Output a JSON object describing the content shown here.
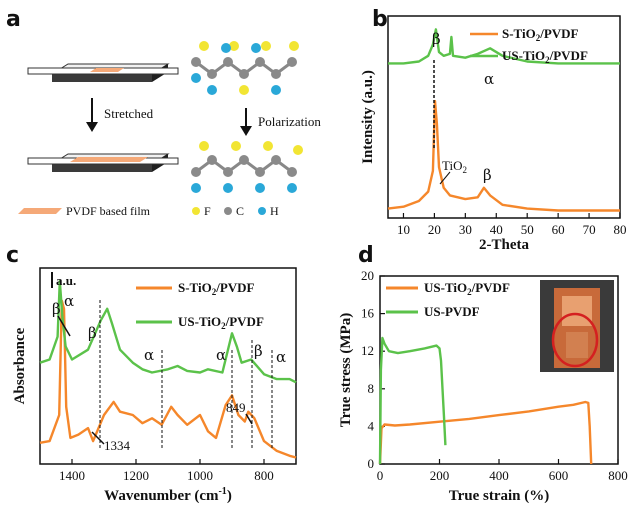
{
  "colors": {
    "orange": "#f5872b",
    "green": "#5bc24a",
    "fluor_yellow": "#f2e533",
    "carbon_gray": "#8a8a8a",
    "hydrogen_blue": "#2aa8d8"
  },
  "panel_a": {
    "letter": "a",
    "stretched_label": "Stretched",
    "polarization_label": "Polarization",
    "film_label": "PVDF based film",
    "atom_f": "F",
    "atom_c": "C",
    "atom_h": "H"
  },
  "chart_data": [
    {
      "panel": "b",
      "type": "line",
      "ylabel": "Intensity (a.u.)",
      "xlabel": "2-Theta",
      "xlim": [
        5,
        80
      ],
      "xticks": [
        "10",
        "20",
        "30",
        "40",
        "50",
        "60",
        "70",
        "80"
      ],
      "series": [
        {
          "name": "S-TiO2/PVDF",
          "color": "#f5872b",
          "x": [
            5,
            10,
            15,
            18,
            19.5,
            20.2,
            20.8,
            21.5,
            23,
            25,
            30,
            34,
            36,
            38,
            42,
            50,
            60,
            70,
            80
          ],
          "y": [
            0.05,
            0.06,
            0.09,
            0.14,
            0.25,
            0.62,
            0.5,
            0.27,
            0.16,
            0.12,
            0.1,
            0.11,
            0.16,
            0.12,
            0.07,
            0.05,
            0.04,
            0.04,
            0.04
          ]
        },
        {
          "name": "US-TiO2/PVDF",
          "color": "#5bc24a",
          "x": [
            5,
            10,
            15,
            18,
            19.5,
            20.5,
            21.5,
            23,
            25,
            25.5,
            26,
            30,
            34,
            38,
            42,
            50,
            60,
            70,
            80
          ],
          "y": [
            0.82,
            0.82,
            0.83,
            0.86,
            0.92,
            1.0,
            0.88,
            0.86,
            0.87,
            0.96,
            0.86,
            0.85,
            0.87,
            0.9,
            0.86,
            0.83,
            0.82,
            0.82,
            0.82
          ]
        }
      ],
      "annotations": [
        "β",
        "α",
        "TiO",
        "2",
        "β"
      ],
      "legend_position": "top-right"
    },
    {
      "panel": "c",
      "type": "line",
      "ylabel": "Absorbance",
      "xlabel": "Wavenumber (cm",
      "xlabel_sup": "-1",
      "xlabel_end": ")",
      "xlim": [
        1500,
        700
      ],
      "xticks": [
        "1400",
        "1200",
        "1000",
        "800"
      ],
      "scale_label": "a.u.",
      "series": [
        {
          "name": "S-TiO2/PVDF",
          "color": "#f5872b",
          "x": [
            1500,
            1470,
            1440,
            1432,
            1425,
            1418,
            1405,
            1380,
            1350,
            1334,
            1300,
            1270,
            1250,
            1210,
            1180,
            1150,
            1120,
            1090,
            1070,
            1040,
            1000,
            975,
            950,
            920,
            900,
            880,
            860,
            849,
            830,
            800,
            760,
            720,
            700
          ],
          "y": [
            0.13,
            0.14,
            0.3,
            1.0,
            0.95,
            0.35,
            0.16,
            0.18,
            0.22,
            0.14,
            0.3,
            0.38,
            0.32,
            0.3,
            0.25,
            0.28,
            0.24,
            0.35,
            0.3,
            0.24,
            0.3,
            0.2,
            0.16,
            0.36,
            0.42,
            0.3,
            0.26,
            0.32,
            0.28,
            0.14,
            0.08,
            0.05,
            0.04
          ]
        },
        {
          "name": "US-TiO2/PVDF",
          "color": "#5bc24a",
          "x": [
            1500,
            1470,
            1445,
            1438,
            1430,
            1420,
            1400,
            1350,
            1310,
            1290,
            1275,
            1250,
            1210,
            1180,
            1150,
            1100,
            1070,
            1040,
            1000,
            975,
            930,
            900,
            885,
            870,
            840,
            800,
            760,
            720,
            700
          ],
          "y": [
            0.62,
            0.64,
            0.78,
            1.12,
            0.9,
            0.72,
            0.64,
            0.7,
            0.88,
            0.95,
            0.86,
            0.7,
            0.62,
            0.58,
            0.56,
            0.58,
            0.6,
            0.57,
            0.56,
            0.58,
            0.56,
            0.8,
            0.72,
            0.62,
            0.64,
            0.55,
            0.52,
            0.52,
            0.5
          ]
        }
      ],
      "annotations": [
        "β",
        "α",
        "β",
        "α",
        "α",
        "β",
        "α",
        "1334",
        "849"
      ],
      "legend_position": "top-right"
    },
    {
      "panel": "d",
      "type": "line",
      "ylabel": "True stress (MPa)",
      "xlabel": "True strain (%)",
      "xlim": [
        0,
        800
      ],
      "ylim": [
        0,
        20
      ],
      "xticks": [
        "0",
        "200",
        "400",
        "600",
        "800"
      ],
      "yticks": [
        "0",
        "4",
        "8",
        "12",
        "16",
        "20"
      ],
      "series": [
        {
          "name": "US-TiO2/PVDF",
          "color": "#f5872b",
          "x": [
            0,
            5,
            15,
            50,
            100,
            200,
            300,
            400,
            500,
            600,
            650,
            690,
            700,
            705,
            710
          ],
          "y": [
            0,
            3.8,
            4.2,
            4.1,
            4.2,
            4.5,
            4.8,
            5.2,
            5.6,
            6.1,
            6.3,
            6.6,
            6.5,
            4,
            0
          ]
        },
        {
          "name": "US-PVDF",
          "color": "#5bc24a",
          "x": [
            0,
            3,
            8,
            15,
            30,
            60,
            100,
            150,
            190,
            200,
            205,
            210,
            215,
            220
          ],
          "y": [
            0,
            10,
            13.4,
            12.8,
            12.0,
            11.8,
            12.0,
            12.3,
            12.6,
            12.3,
            11,
            8,
            5,
            2
          ]
        }
      ],
      "legend_position": "top-left"
    }
  ],
  "labels": {
    "b_letter": "b",
    "c_letter": "c",
    "d_letter": "d",
    "legend_b1": "S-TiO",
    "legend_b2": "US-TiO",
    "legend_c1": "S-TiO",
    "legend_c2": "US-TiO",
    "legend_d1": "US-TiO",
    "legend_d2": "US-PVDF",
    "sub2": "2",
    "pvdf_suffix": "/PVDF"
  }
}
